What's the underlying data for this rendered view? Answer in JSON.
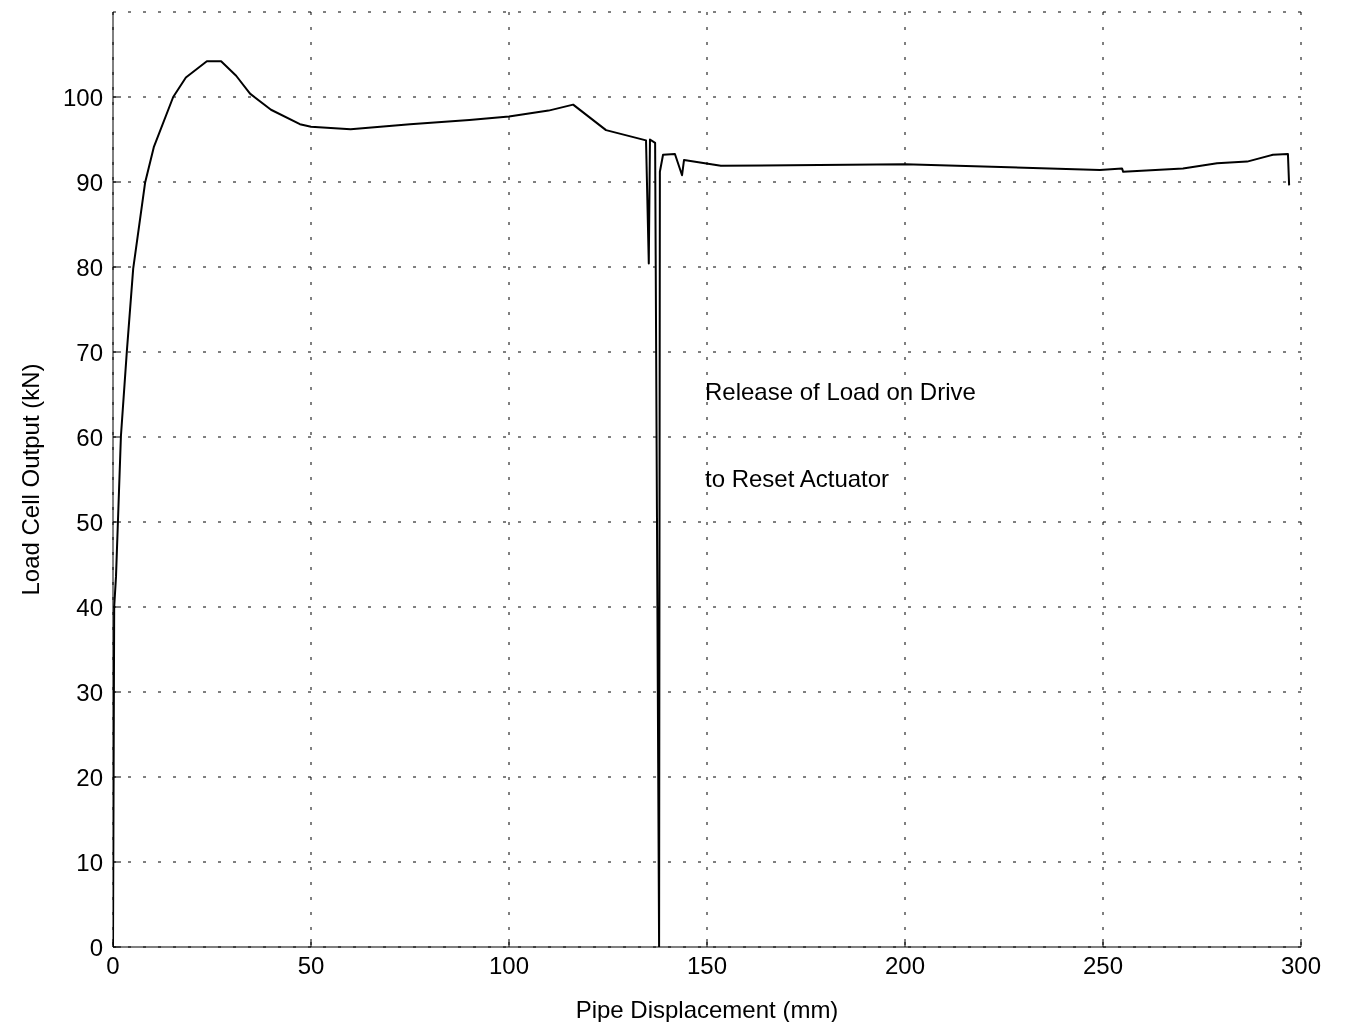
{
  "chart_data": {
    "type": "line",
    "xlabel": "Pipe Displacement (mm)",
    "ylabel": "Load Cell Output (kN)",
    "annotations": [
      "Release of Load on Drive",
      "to Reset Actuator"
    ],
    "x": [
      0,
      0.3,
      0.76,
      2.0,
      3.5,
      5.1,
      8.1,
      10.3,
      15.2,
      18.4,
      23.7,
      27.3,
      31.1,
      34.6,
      39.9,
      47.2,
      50,
      60,
      75,
      90,
      100,
      110,
      116.2,
      124.5,
      134.6,
      135.3,
      135.6,
      136.9,
      137.9,
      138.1,
      138.9,
      141.9,
      143.7,
      144.2,
      153.5,
      200,
      249.2,
      254.8,
      255.1,
      270.2,
      278.8,
      286.4,
      292.9,
      296.7,
      297
    ],
    "series": [
      {
        "color": "#000000",
        "values": [
          0,
          40,
          43.6,
          60.1,
          70.1,
          79.8,
          89.9,
          94.1,
          100,
          102.3,
          104.2,
          104.2,
          102.5,
          100.4,
          98.5,
          96.8,
          96.5,
          96.2,
          96.8,
          97.3,
          97.7,
          98.4,
          99.1,
          96.1,
          94.9,
          80.4,
          95,
          94.6,
          0,
          91.2,
          93.2,
          93.3,
          90.8,
          92.6,
          91.9,
          92.1,
          91.4,
          91.6,
          91.2,
          91.6,
          92.2,
          92.4,
          93.2,
          93.3,
          89.6
        ]
      }
    ],
    "xlim": [
      0,
      300
    ],
    "ylim": [
      0,
      110
    ],
    "xticks": [
      0,
      50,
      100,
      150,
      200,
      250,
      300
    ],
    "yticks": [
      0,
      10,
      20,
      30,
      40,
      50,
      60,
      70,
      80,
      90,
      100
    ],
    "grid": true,
    "legend": false,
    "marker": "none",
    "line_style": "solid"
  }
}
